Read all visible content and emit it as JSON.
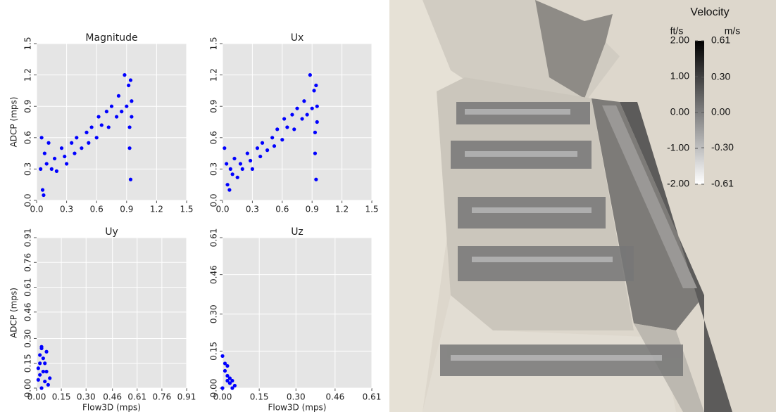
{
  "chart_data": [
    {
      "type": "scatter",
      "title": "Magnitude",
      "ylabel": "ADCP (mps)",
      "color": "#0000ff",
      "xlim": [
        0,
        1.5
      ],
      "ylim": [
        0,
        1.5
      ],
      "xticks": [
        {
          "value": 0,
          "label": "0.0"
        },
        0.3,
        0.6,
        0.9,
        1.2,
        1.5
      ],
      "yticks": [
        {
          "value": 0,
          "label": "0.0"
        },
        0.3,
        0.6,
        0.9,
        1.2,
        1.5
      ],
      "x": [
        0.04,
        0.06,
        0.08,
        0.1,
        0.12,
        0.15,
        0.18,
        0.2,
        0.25,
        0.28,
        0.3,
        0.35,
        0.38,
        0.4,
        0.45,
        0.5,
        0.52,
        0.55,
        0.6,
        0.62,
        0.65,
        0.7,
        0.72,
        0.75,
        0.8,
        0.82,
        0.85,
        0.88,
        0.9,
        0.92,
        0.93,
        0.94,
        0.94,
        0.95,
        0.95,
        0.93,
        0.07,
        0.05
      ],
      "values": [
        0.3,
        0.1,
        0.45,
        0.35,
        0.55,
        0.3,
        0.4,
        0.28,
        0.5,
        0.42,
        0.35,
        0.55,
        0.45,
        0.6,
        0.5,
        0.65,
        0.55,
        0.7,
        0.6,
        0.8,
        0.72,
        0.85,
        0.7,
        0.9,
        0.8,
        1.0,
        0.85,
        1.2,
        0.9,
        1.1,
        0.5,
        0.2,
        1.15,
        0.8,
        0.95,
        0.7,
        0.05,
        0.6
      ]
    },
    {
      "type": "scatter",
      "title": "Ux",
      "color": "#0000ff",
      "xlim": [
        0,
        1.5
      ],
      "ylim": [
        0,
        1.5
      ],
      "xticks": [
        {
          "value": 0,
          "label": "0.0"
        },
        0.3,
        0.6,
        0.9,
        1.2,
        1.5
      ],
      "yticks": [
        {
          "value": 0,
          "label": "0.0"
        },
        0.3,
        0.6,
        0.9,
        1.2,
        1.5
      ],
      "x": [
        0.02,
        0.05,
        0.08,
        0.1,
        0.12,
        0.15,
        0.18,
        0.2,
        0.25,
        0.28,
        0.3,
        0.35,
        0.38,
        0.4,
        0.45,
        0.5,
        0.52,
        0.55,
        0.6,
        0.62,
        0.65,
        0.7,
        0.72,
        0.75,
        0.8,
        0.82,
        0.85,
        0.88,
        0.9,
        0.92,
        0.93,
        0.94,
        0.94,
        0.95,
        0.95,
        0.93,
        0.07,
        0.04
      ],
      "values": [
        0.5,
        0.15,
        0.3,
        0.25,
        0.4,
        0.22,
        0.35,
        0.3,
        0.45,
        0.38,
        0.3,
        0.5,
        0.42,
        0.55,
        0.48,
        0.6,
        0.52,
        0.68,
        0.58,
        0.78,
        0.7,
        0.82,
        0.68,
        0.88,
        0.78,
        0.95,
        0.82,
        1.2,
        0.88,
        1.05,
        0.45,
        0.2,
        1.1,
        0.75,
        0.9,
        0.65,
        0.1,
        0.35
      ]
    },
    {
      "type": "scatter",
      "title": "Uy",
      "ylabel": "ADCP (mps)",
      "xlabel": "Flow3D (mps)",
      "color": "#0000ff",
      "xlim": [
        0,
        0.91
      ],
      "ylim": [
        0,
        0.91
      ],
      "xticks": [
        {
          "value": 0,
          "label": "0.00"
        },
        0.15,
        {
          "value": 0.3,
          "label": "0.30"
        },
        0.46,
        0.61,
        0.76,
        0.91
      ],
      "yticks": [
        {
          "value": 0,
          "label": "0.00"
        },
        0.15,
        {
          "value": 0.3,
          "label": "0.30"
        },
        0.46,
        0.61,
        0.76,
        0.91
      ],
      "x": [
        0.01,
        0.02,
        0.03,
        0.04,
        0.05,
        0.06,
        0.02,
        0.03,
        0.04,
        0.05,
        0.01,
        0.07,
        0.08,
        0.03,
        0.02,
        0.06
      ],
      "values": [
        0.05,
        0.2,
        0.25,
        0.1,
        0.15,
        0.22,
        0.08,
        0.0,
        0.18,
        0.04,
        0.12,
        0.02,
        0.06,
        0.24,
        0.15,
        0.1
      ]
    },
    {
      "type": "scatter",
      "title": "Uz",
      "xlabel": "Flow3D (mps)",
      "color": "#0000ff",
      "xlim": [
        0,
        0.61
      ],
      "ylim": [
        0,
        0.61
      ],
      "xticks": [
        {
          "value": 0,
          "label": "0.00"
        },
        0.15,
        {
          "value": 0.3,
          "label": "0.30"
        },
        0.46,
        0.61
      ],
      "yticks": [
        {
          "value": 0,
          "label": "0.00"
        },
        0.15,
        {
          "value": 0.3,
          "label": "0.30"
        },
        0.46,
        0.61
      ],
      "x": [
        0.0,
        0.01,
        0.02,
        0.03,
        0.04,
        0.05,
        0.01,
        0.02,
        0.03,
        0.0,
        0.04,
        0.02
      ],
      "values": [
        0.13,
        0.1,
        0.05,
        0.02,
        0.0,
        0.01,
        0.07,
        0.03,
        0.04,
        0.0,
        0.03,
        0.09
      ]
    }
  ],
  "colorbar": {
    "title": "Velocity",
    "left_unit": "ft/s",
    "right_unit": "m/s",
    "left_lim": [
      -2,
      2
    ],
    "right_lim": [
      -0.61,
      0.61
    ],
    "left_ticks": [
      {
        "value": 2,
        "label": "2.00"
      },
      {
        "value": 1,
        "label": "1.00"
      },
      {
        "value": 0,
        "label": "0.00"
      },
      {
        "value": -1,
        "label": "-1.00"
      },
      {
        "value": -2,
        "label": "-2.00"
      }
    ],
    "right_ticks": [
      0.61,
      {
        "value": 0.3,
        "label": "0.30"
      },
      {
        "value": 0,
        "label": "0.00"
      },
      {
        "value": -0.3,
        "label": "-0.30"
      },
      -0.61
    ]
  }
}
